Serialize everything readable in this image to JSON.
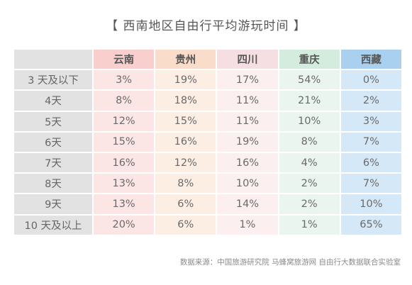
{
  "chart_data": {
    "type": "table",
    "title": "【 西南地区自由行平均游玩时间 】",
    "columns": [
      {
        "name": "云南",
        "header_bg": "#f8cfcd",
        "cell_bg": "#fce6e5"
      },
      {
        "name": "贵州",
        "header_bg": "#f9dcca",
        "cell_bg": "#fdeee4"
      },
      {
        "name": "四川",
        "header_bg": "#f6dfe2",
        "cell_bg": "#fbeff0"
      },
      {
        "name": "重庆",
        "header_bg": "#d3ecdd",
        "cell_bg": "#e9f5ee"
      },
      {
        "name": "西藏",
        "header_bg": "#a9d1ef",
        "cell_bg": "#d5e8f8"
      }
    ],
    "rows": [
      {
        "label": "3 天及以下",
        "values": [
          "3%",
          "19%",
          "17%",
          "54%",
          "0%"
        ]
      },
      {
        "label": "4天",
        "values": [
          "8%",
          "18%",
          "11%",
          "21%",
          "2%"
        ]
      },
      {
        "label": "5天",
        "values": [
          "12%",
          "15%",
          "11%",
          "10%",
          "3%"
        ]
      },
      {
        "label": "6天",
        "values": [
          "15%",
          "16%",
          "19%",
          "8%",
          "7%"
        ]
      },
      {
        "label": "7天",
        "values": [
          "16%",
          "12%",
          "16%",
          "4%",
          "6%"
        ]
      },
      {
        "label": "8天",
        "values": [
          "13%",
          "8%",
          "10%",
          "2%",
          "7%"
        ]
      },
      {
        "label": "9天",
        "values": [
          "13%",
          "6%",
          "14%",
          "2%",
          "10%"
        ]
      },
      {
        "label": "10 天及以上",
        "values": [
          "20%",
          "6%",
          "1%",
          "1%",
          "65%"
        ]
      }
    ],
    "label_col_bg": "#e2e2e2",
    "source": "数据来源：中国旅游研究院 马蜂窝旅游网 自由行大数据联合实验室"
  }
}
